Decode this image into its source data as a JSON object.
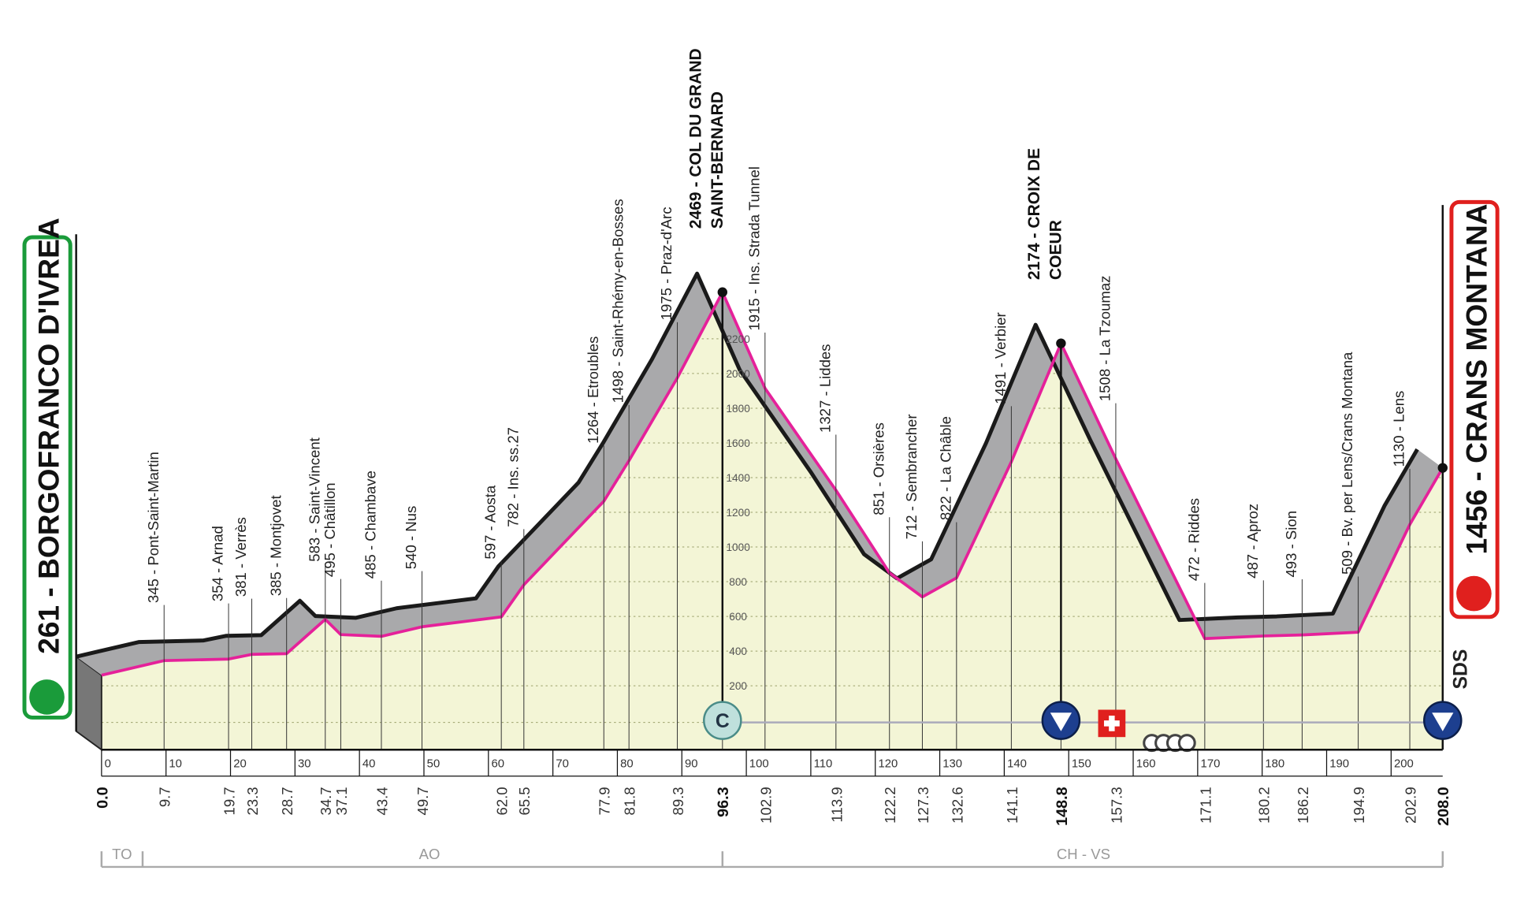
{
  "chart_data": {
    "type": "elevation_profile",
    "x": [
      0,
      9.7,
      19.7,
      23.3,
      28.7,
      34.7,
      37.1,
      43.4,
      49.7,
      62.0,
      65.5,
      77.9,
      81.8,
      89.3,
      96.3,
      102.9,
      113.9,
      122.2,
      127.3,
      132.6,
      141.1,
      148.8,
      157.3,
      171.1,
      180.2,
      186.2,
      194.9,
      202.9,
      208.0
    ],
    "values": [
      261,
      345,
      354,
      381,
      385,
      583,
      495,
      485,
      540,
      597,
      782,
      1264,
      1498,
      1975,
      2469,
      1915,
      1327,
      851,
      712,
      822,
      1491,
      2174,
      1508,
      472,
      487,
      493,
      509,
      1130,
      1456
    ],
    "value_labels": [
      "261 - BORGOFRANCO D'IVREA",
      "345 - Pont-Saint-Martin",
      "354 - Arnad",
      "381 - Verrès",
      "385 - Montjovet",
      "583 - Saint-Vincent",
      "495 - Châtillon",
      "485 - Chambave",
      "540 - Nus",
      "597 - Aosta",
      "782 - Ins. ss.27",
      "1264 - Etroubles",
      "1498 - Saint-Rhémy-en-Bosses",
      "1975 - Praz-d'Arc",
      "2469 - COL DU GRAND SAINT-BERNARD",
      "1915 - Ins. Strada Tunnel",
      "1327 - Liddes",
      "851 - Orsières",
      "712 - Sembrancher",
      "822 - La Châble",
      "1491 - Verbier",
      "2174 - CROIX DE COEUR",
      "1508 - La Tzoumaz",
      "472 - Riddes",
      "487 - Aproz",
      "493 - Sion",
      "509 - Bv. per Lens/Crans Montana",
      "1130 - Lens",
      "1456 - CRANS MONTANA"
    ],
    "km_marks": [
      {
        "value": 0,
        "label": "0.0"
      },
      9.7,
      19.7,
      23.3,
      28.7,
      34.7,
      37.1,
      43.4,
      49.7,
      {
        "value": 62,
        "label": "62.0"
      },
      65.5,
      77.9,
      81.8,
      89.3,
      96.3,
      102.9,
      113.9,
      122.2,
      127.3,
      132.6,
      141.1,
      148.8,
      157.3,
      171.1,
      180.2,
      186.2,
      194.9,
      202.9,
      {
        "value": 208,
        "label": "208.0"
      }
    ],
    "xlim": [
      0,
      208
    ],
    "xticks": [
      0,
      10,
      20,
      30,
      40,
      50,
      60,
      70,
      80,
      90,
      100,
      110,
      120,
      130,
      140,
      150,
      160,
      170,
      180,
      190,
      200
    ],
    "ylim": [
      0,
      2600
    ],
    "yticks": [
      200,
      400,
      600,
      800,
      1000,
      1200,
      1400,
      1600,
      1800,
      2000,
      2200
    ],
    "line_color": "#e5219a",
    "regions": [
      "TO",
      "AO",
      "CH - VS"
    ],
    "sprint_symbol": "C",
    "logo": "SDS"
  }
}
